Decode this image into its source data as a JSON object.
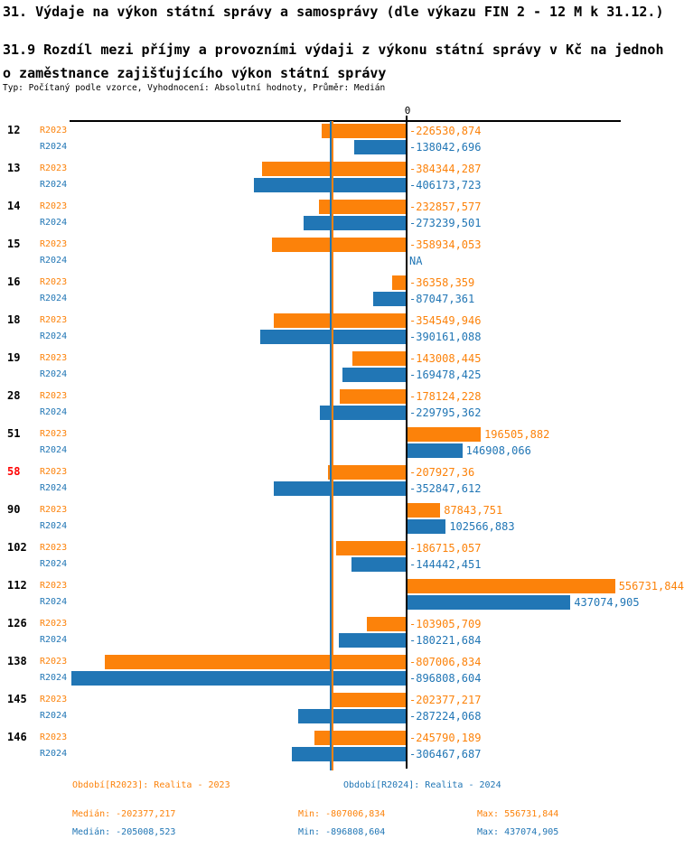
{
  "header": {
    "title": "31. Výdaje na výkon státní správy a samosprávy (dle výkazu FIN 2 - 12 M k 31.12.)",
    "subtitle_line1": "31.9 Rozdíl mezi příjmy a provozními výdaji z výkonu státní správy v Kč na jednoh",
    "subtitle_line2": "o zaměstnance zajišťujícího výkon státní správy",
    "meta": "Typ: Počítaný podle vzorce, Vyhodnocení: Absolutní hodnoty, Průměr: Medián"
  },
  "colors": {
    "r2023": "#FC820A",
    "r2024": "#2176B5",
    "highlight_category": "#FF0000",
    "axis": "#000000"
  },
  "chart_data": {
    "type": "bar",
    "orientation": "horizontal",
    "zero_label": "0",
    "categories": [
      "12",
      "13",
      "14",
      "15",
      "16",
      "18",
      "19",
      "28",
      "51",
      "58",
      "90",
      "102",
      "112",
      "126",
      "138",
      "145",
      "146"
    ],
    "highlighted_category": "58",
    "series": [
      {
        "name": "R2023",
        "values": [
          -226530.874,
          -384344.287,
          -232857.577,
          -358934.053,
          -36358.359,
          -354549.946,
          -143008.445,
          -178124.228,
          196505.882,
          -207927.36,
          87843.751,
          -186715.057,
          556731.844,
          -103905.709,
          -807006.834,
          -202377.217,
          -245790.189
        ],
        "labels": [
          "-226530,874",
          "-384344,287",
          "-232857,577",
          "-358934,053",
          "-36358,359",
          "-354549,946",
          "-143008,445",
          "-178124,228",
          "196505,882",
          "-207927,36",
          "87843,751",
          "-186715,057",
          "556731,844",
          "-103905,709",
          "-807006,834",
          "-202377,217",
          "-245790,189"
        ]
      },
      {
        "name": "R2024",
        "values": [
          -138042.696,
          -406173.723,
          -273239.501,
          null,
          -87047.361,
          -390161.088,
          -169478.425,
          -229795.362,
          146908.066,
          -352847.612,
          102566.883,
          -144442.451,
          437074.905,
          -180221.684,
          -896808.604,
          -287224.068,
          -306467.687
        ],
        "labels": [
          "-138042,696",
          "-406173,723",
          "-273239,501",
          "NA",
          "-87047,361",
          "-390161,088",
          "-169478,425",
          "-229795,362",
          "146908,066",
          "-352847,612",
          "102566,883",
          "-144442,451",
          "437074,905",
          "-180221,684",
          "-896808,604",
          "-287224,068",
          "-306467,687"
        ]
      }
    ],
    "medians": {
      "R2023": -202377.217,
      "R2024": -205008.523
    },
    "xlim": [
      -896808.604,
      556731.844
    ],
    "legend_position": "bottom"
  },
  "legend": {
    "r2023": {
      "period": "Období[R2023]: Realita - 2023",
      "median": "Medián: -202377,217",
      "min": "Min: -807006,834",
      "max": "Max: 556731,844"
    },
    "r2024": {
      "period": "Období[R2024]: Realita - 2024",
      "median": "Medián: -205008,523",
      "min": "Min: -896808,604",
      "max": "Max: 437074,905"
    }
  }
}
